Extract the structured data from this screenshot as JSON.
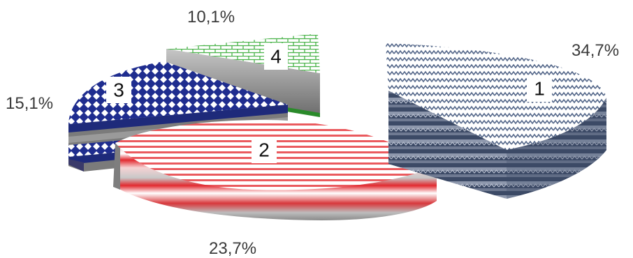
{
  "chart_data": {
    "type": "pie",
    "title": "",
    "style": "3d exploded",
    "legend": "none",
    "slices": [
      {
        "label": "1",
        "value": 34.7,
        "value_label": "34,7%",
        "color": "#4a5a7a",
        "pattern": "zigzag"
      },
      {
        "label": "2",
        "value": 23.7,
        "value_label": "23,7%",
        "color": "#e0262b",
        "pattern": "horizontal-stripes"
      },
      {
        "label": "3",
        "value": 15.1,
        "value_label": "15,1%",
        "color": "#1f2d8f",
        "pattern": "checker-diamond"
      },
      {
        "label": "4",
        "value": 10.1,
        "value_label": "10,1%",
        "color": "#3fae3f",
        "pattern": "brick"
      }
    ]
  }
}
